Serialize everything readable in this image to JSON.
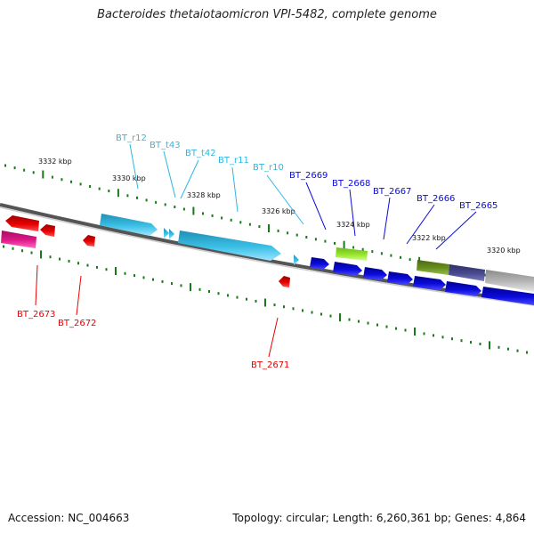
{
  "title": "Bacteroides thetaiotaomicron VPI-5482, complete genome",
  "footer": {
    "accession": "Accession: NC_004663",
    "topology": "Topology: circular; Length: 6,260,361 bp; Genes: 4,864"
  },
  "colors": {
    "cyan": "#3cc0e6",
    "cyan_label": "#2fb7e0",
    "blue": "#0b0bdc",
    "red": "#e60000",
    "magenta": "#e0198a",
    "lime": "#99e62e",
    "olive": "#6a8f1f",
    "purple": "#4a4a90",
    "gray": "#b8b8b8",
    "backbone": "#777777",
    "tick": "#1a7a1a"
  },
  "ticks": [
    {
      "label": "3332 kbp"
    },
    {
      "label": "3330 kbp"
    },
    {
      "label": "3328 kbp"
    },
    {
      "label": "3326 kbp"
    },
    {
      "label": "3324 kbp"
    },
    {
      "label": "3322 kbp"
    },
    {
      "label": "3320 kbp"
    }
  ],
  "upper_labels": [
    {
      "text": "BT_r12",
      "color": "cyan"
    },
    {
      "text": "BT_t43",
      "color": "cyan"
    },
    {
      "text": "BT_t42",
      "color": "cyan"
    },
    {
      "text": "BT_r11",
      "color": "cyan"
    },
    {
      "text": "BT_r10",
      "color": "cyan"
    },
    {
      "text": "BT_2669",
      "color": "blue"
    },
    {
      "text": "BT_2668",
      "color": "blue"
    },
    {
      "text": "BT_2667",
      "color": "blue"
    },
    {
      "text": "BT_2666",
      "color": "blue"
    },
    {
      "text": "BT_2665",
      "color": "blue"
    }
  ],
  "lower_labels": [
    {
      "text": "BT_2673",
      "color": "red"
    },
    {
      "text": "BT_2672",
      "color": "red"
    },
    {
      "text": "BT_2671",
      "color": "red"
    }
  ]
}
